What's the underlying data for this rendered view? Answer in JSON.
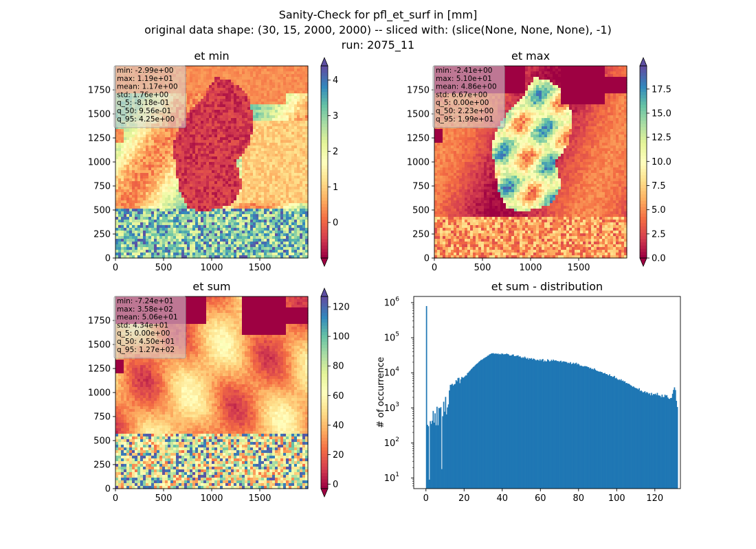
{
  "figure": {
    "title_line1": "Sanity-Check for pfl_et_surf in [mm]",
    "title_line2": "original data shape: (30, 15, 2000, 2000) -- sliced with: (slice(None, None, None), -1)",
    "title_line3": "run: 2075_11"
  },
  "colormap": {
    "name": "Spectral",
    "stops": [
      "#9e0142",
      "#d53e4f",
      "#f46d43",
      "#fdae61",
      "#fee08b",
      "#ffffbf",
      "#e6f598",
      "#abdda4",
      "#66c2a5",
      "#3288bd",
      "#5e4fa2"
    ]
  },
  "chart_data": [
    {
      "type": "heatmap",
      "title": "et min",
      "x_ticks": [
        0,
        500,
        1000,
        1500
      ],
      "y_ticks": [
        0,
        250,
        500,
        750,
        1000,
        1250,
        1500,
        1750
      ],
      "xlim": [
        0,
        2000
      ],
      "ylim": [
        0,
        2000
      ],
      "colorbar": {
        "ticks": [
          0,
          1,
          2,
          3,
          4
        ],
        "range": [
          -1.0,
          4.4
        ],
        "extend": "both"
      },
      "stats": [
        "min: -2.99e+00",
        "max: 1.19e+01",
        "mean: 1.17e+00",
        "std: 1.76e+00",
        "q_5: -8.18e-01",
        "q_50: 9.56e-01",
        "q_95: 4.25e+00"
      ]
    },
    {
      "type": "heatmap",
      "title": "et max",
      "x_ticks": [
        0,
        500,
        1000,
        1500
      ],
      "y_ticks": [
        0,
        250,
        500,
        750,
        1000,
        1250,
        1500,
        1750
      ],
      "xlim": [
        0,
        2000
      ],
      "ylim": [
        0,
        2000
      ],
      "colorbar": {
        "ticks": [
          0.0,
          2.5,
          5.0,
          7.5,
          10.0,
          12.5,
          15.0,
          17.5
        ],
        "range": [
          0,
          19.9
        ],
        "extend": "both"
      },
      "stats": [
        "min: -2.41e+00",
        "max: 5.10e+01",
        "mean: 4.86e+00",
        "std: 6.67e+00",
        "q_5: 0.00e+00",
        "q_50: 2.23e+00",
        "q_95: 1.99e+01"
      ]
    },
    {
      "type": "heatmap",
      "title": "et sum",
      "x_ticks": [
        0,
        500,
        1000,
        1500
      ],
      "y_ticks": [
        0,
        250,
        500,
        750,
        1000,
        1250,
        1500,
        1750
      ],
      "xlim": [
        0,
        2000
      ],
      "ylim": [
        0,
        2000
      ],
      "colorbar": {
        "ticks": [
          0,
          20,
          40,
          60,
          80,
          100,
          120
        ],
        "range": [
          -3,
          127
        ],
        "extend": "both"
      },
      "stats": [
        "min: -7.24e+01",
        "max: 3.58e+02",
        "mean: 5.06e+01",
        "std: 4.34e+01",
        "q_5: 0.00e+00",
        "q_50: 4.50e+01",
        "q_95: 1.27e+02"
      ]
    },
    {
      "type": "bar",
      "title": "et sum - distribution",
      "ylabel": "# of occurrence",
      "yscale": "log",
      "xlim": [
        -6.4,
        133.4
      ],
      "ylim": [
        5,
        1500000
      ],
      "x_ticks": [
        0,
        20,
        40,
        60,
        80,
        100,
        120
      ],
      "y_ticks": [
        "10^1",
        "10^2",
        "10^3",
        "10^4",
        "10^5",
        "10^6"
      ],
      "bar_color": "#1f77b4",
      "x_start": 0,
      "bin_width": 0.5,
      "counts": [
        800000,
        330,
        300,
        9,
        420,
        350,
        430,
        820,
        380,
        700,
        320,
        1080,
        320,
        1000,
        980,
        1050,
        18,
        580,
        1500,
        780,
        2060,
        650,
        1030,
        1260,
        3140,
        4530,
        4590,
        4850,
        4350,
        4670,
        4820,
        6160,
        5720,
        7130,
        7190,
        5060,
        6530,
        7610,
        7300,
        7280,
        7820,
        8380,
        8420,
        9850,
        10210,
        11030,
        11850,
        12720,
        13600,
        14610,
        15220,
        16330,
        17390,
        18270,
        19250,
        20520,
        21660,
        23170,
        23460,
        24460,
        25720,
        26730,
        27810,
        28570,
        30670,
        31130,
        33370,
        34040,
        35570,
        36000,
        36290,
        34780,
        35280,
        35460,
        34420,
        35360,
        33440,
        34490,
        33290,
        35680,
        34740,
        33160,
        34270,
        33960,
        35280,
        34430,
        33620,
        31130,
        31020,
        31290,
        33050,
        33290,
        29900,
        29820,
        30510,
        30900,
        31500,
        28550,
        29720,
        27610,
        26280,
        27880,
        26580,
        28930,
        26690,
        24900,
        26650,
        23900,
        26150,
        24920,
        26250,
        23790,
        25470,
        25030,
        23380,
        22440,
        23710,
        23210,
        22080,
        24310,
        22120,
        23890,
        24690,
        20660,
        22390,
        21090,
        21270,
        24310,
        22930,
        21110,
        21560,
        23480,
        21730,
        23750,
        22180,
        22580,
        22470,
        21490,
        21620,
        20520,
        21470,
        22090,
        19910,
        21110,
        21240,
        20680,
        20580,
        20200,
        18720,
        19400,
        18630,
        20160,
        17710,
        18230,
        19380,
        17910,
        18630,
        19400,
        17150,
        18260,
        17170,
        15680,
        16120,
        15640,
        15050,
        15400,
        15520,
        15420,
        15250,
        14640,
        14500,
        13370,
        13960,
        12840,
        12980,
        12410,
        13400,
        12280,
        11560,
        11320,
        11060,
        10660,
        10880,
        10620,
        10470,
        9700,
        9730,
        9890,
        9190,
        9240,
        8690,
        8360,
        9120,
        8070,
        8070,
        7590,
        7780,
        8140,
        6970,
        7200,
        6620,
        6230,
        6520,
        6100,
        6560,
        5850,
        6020,
        5600,
        5740,
        5080,
        5150,
        4890,
        4920,
        4660,
        4430,
        4260,
        3960,
        4120,
        3830,
        3720,
        3640,
        3550,
        3350,
        3640,
        3030,
        3140,
        2950,
        2740,
        2850,
        2980,
        2660,
        2830,
        2700,
        2480,
        2640,
        2280,
        2680,
        2310,
        2490,
        2440,
        2540,
        2330,
        2680,
        2280,
        2260,
        2210,
        2010,
        2390,
        2040,
        2040,
        2380,
        2240,
        2310,
        1980,
        1830,
        1800,
        1910,
        1930,
        2530,
        3260,
        3850,
        3220,
        1590,
        1060
      ]
    }
  ]
}
